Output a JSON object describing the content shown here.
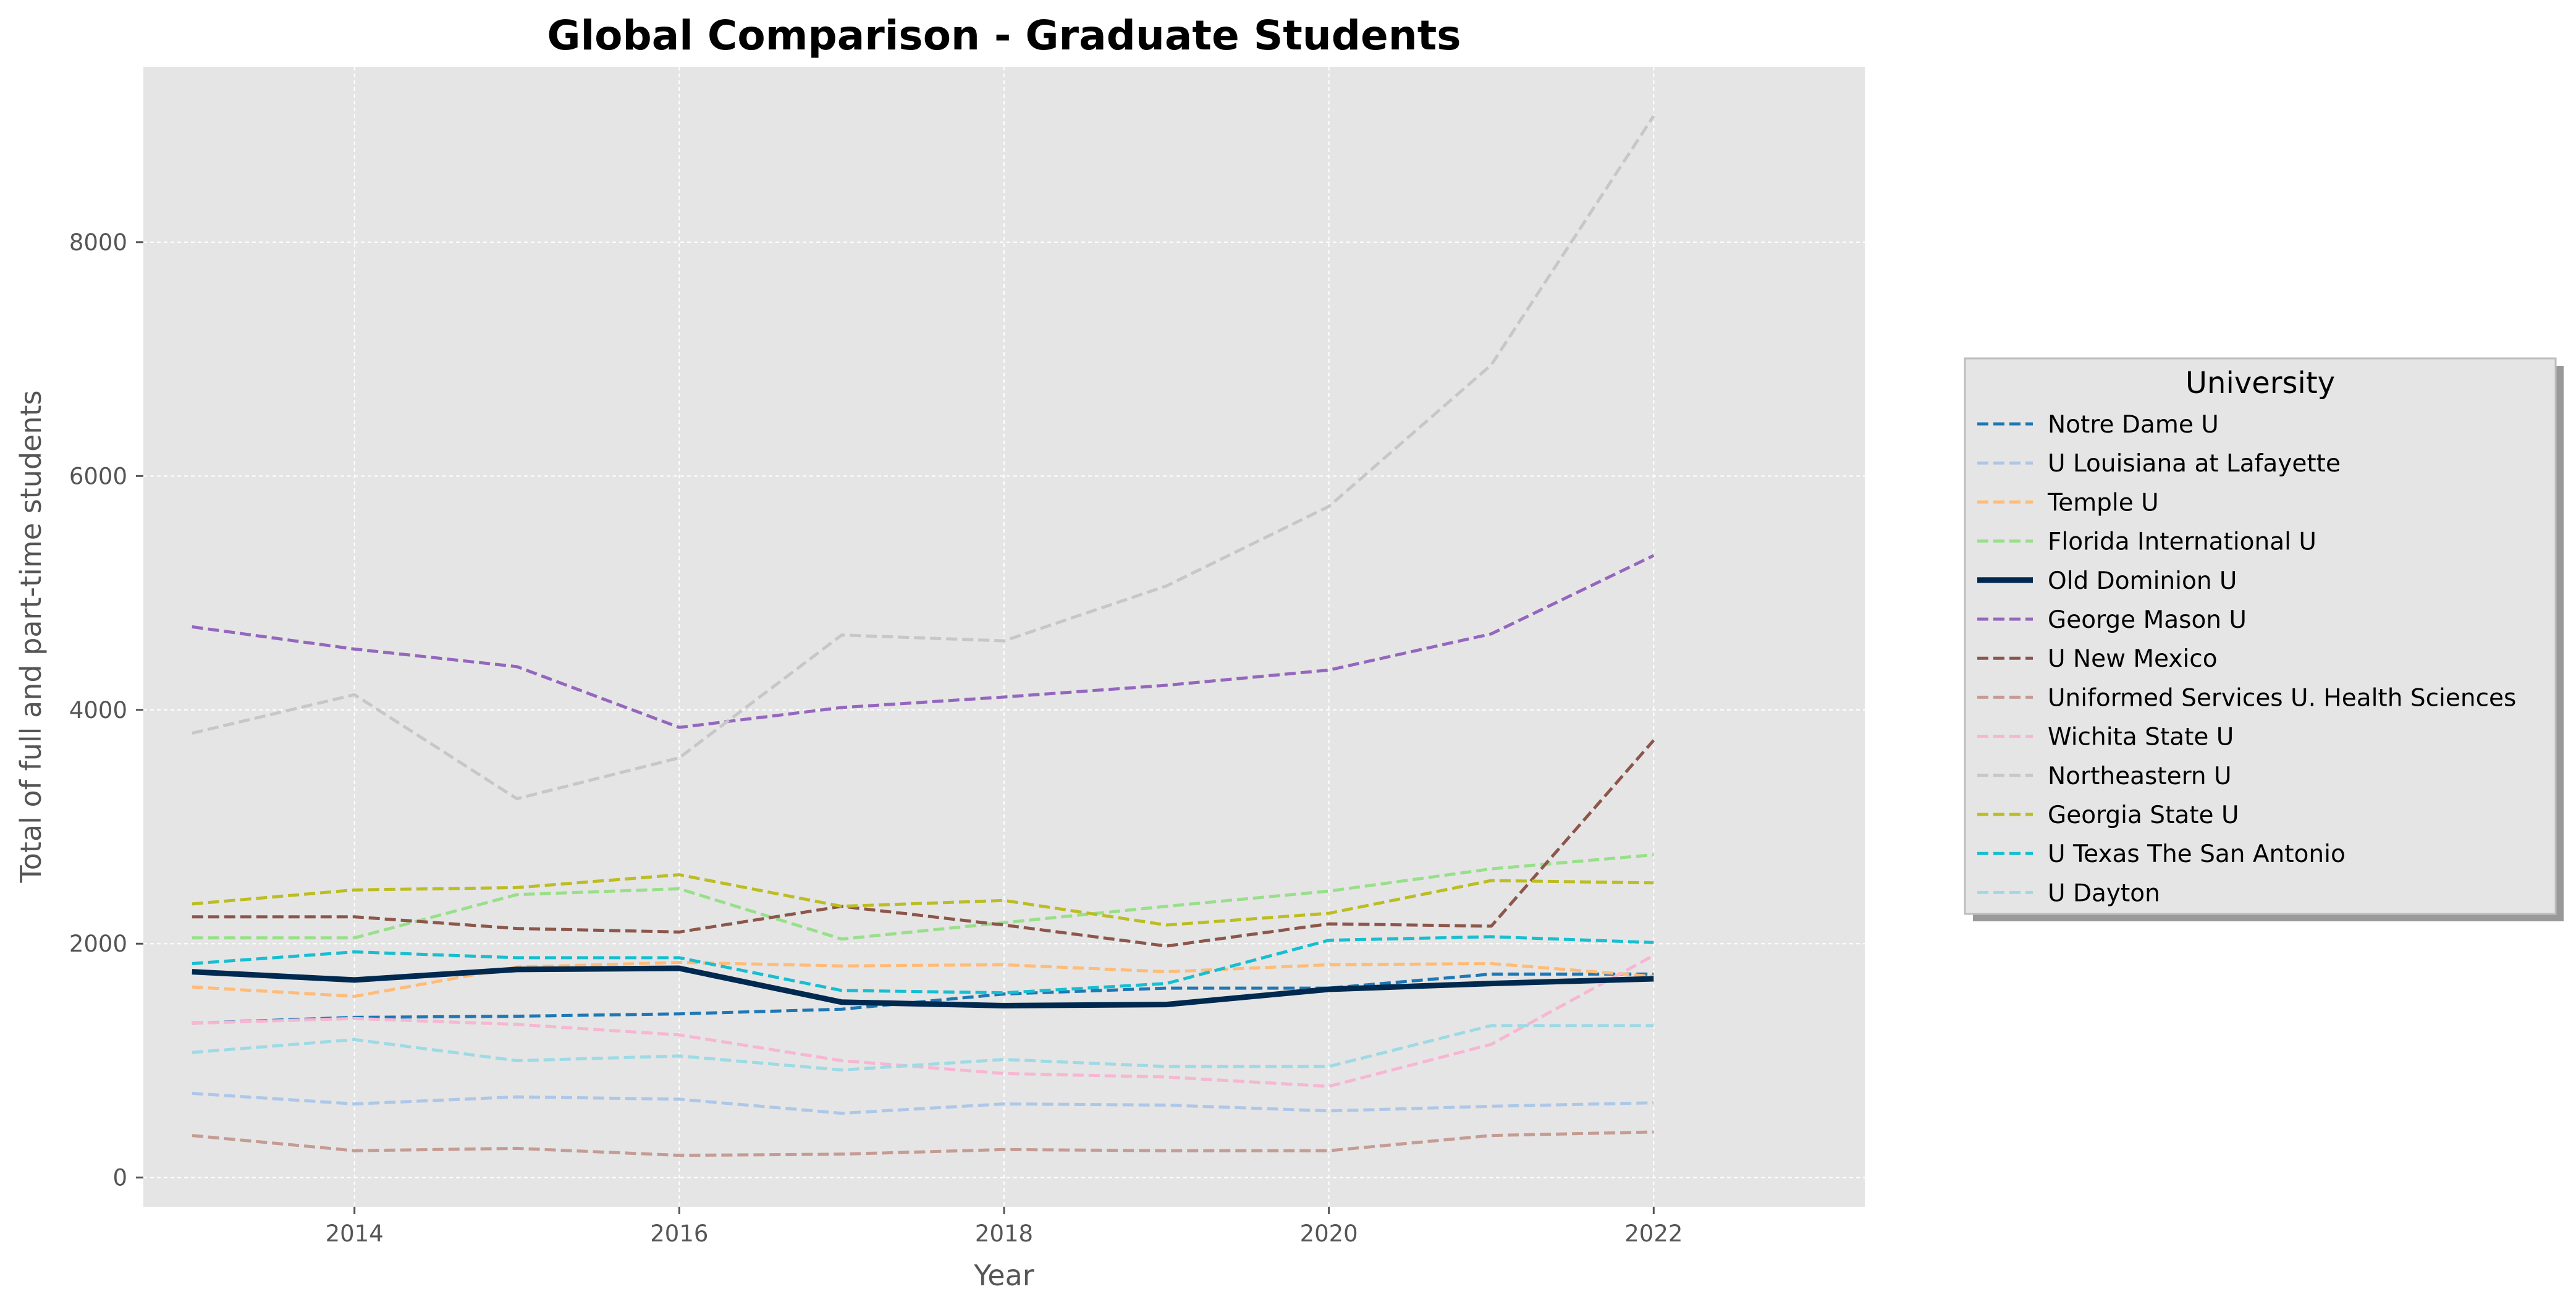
{
  "chart_data": {
    "type": "line",
    "title": "Global Comparison - Graduate Students",
    "xlabel": "Year",
    "ylabel": "Total of full and part-time students",
    "xlim": [
      2012.7,
      2023.3
    ],
    "ylim": [
      -250,
      9500
    ],
    "xticks": [
      2014,
      2016,
      2018,
      2020,
      2022
    ],
    "yticks": [
      0,
      2000,
      4000,
      6000,
      8000
    ],
    "grid": true,
    "legend_title": "University",
    "legend_position": "center-right-outside",
    "x": [
      2013,
      2014,
      2015,
      2016,
      2017,
      2018,
      2019,
      2020,
      2021,
      2022
    ],
    "series": [
      {
        "name": "Notre Dame U",
        "color": "#1f77b4",
        "style": "dashed",
        "values": [
          1320,
          1370,
          1380,
          1400,
          1440,
          1570,
          1620,
          1620,
          1740,
          1740
        ]
      },
      {
        "name": "U Louisiana at Lafayette",
        "color": "#aec7e8",
        "style": "dashed",
        "values": [
          720,
          630,
          690,
          670,
          550,
          630,
          620,
          570,
          610,
          640
        ]
      },
      {
        "name": "Temple U",
        "color": "#ffbb78",
        "style": "dashed",
        "values": [
          1630,
          1550,
          1800,
          1840,
          1810,
          1820,
          1760,
          1820,
          1830,
          1720
        ]
      },
      {
        "name": "Florida International U",
        "color": "#98df8a",
        "style": "dashed",
        "values": [
          2050,
          2050,
          2420,
          2470,
          2040,
          2180,
          2320,
          2450,
          2640,
          2760
        ]
      },
      {
        "name": "Old Dominion U",
        "color": "#00294f",
        "style": "solid",
        "values": [
          1760,
          1690,
          1780,
          1790,
          1500,
          1470,
          1480,
          1610,
          1660,
          1700
        ]
      },
      {
        "name": "George Mason U",
        "color": "#9467bd",
        "style": "dashed",
        "values": [
          4710,
          4520,
          4370,
          3850,
          4020,
          4110,
          4210,
          4340,
          4650,
          5320
        ]
      },
      {
        "name": "U New Mexico",
        "color": "#8c564b",
        "style": "dashed",
        "values": [
          2230,
          2230,
          2130,
          2100,
          2320,
          2160,
          1980,
          2170,
          2150,
          3740
        ]
      },
      {
        "name": "Uniformed Services U. Health Sciences",
        "color": "#c49c94",
        "style": "dashed",
        "values": [
          360,
          230,
          250,
          190,
          200,
          240,
          230,
          230,
          360,
          390
        ]
      },
      {
        "name": "Wichita State U",
        "color": "#f7b6d2",
        "style": "dashed",
        "values": [
          1320,
          1360,
          1310,
          1220,
          1000,
          890,
          860,
          780,
          1140,
          1900
        ]
      },
      {
        "name": "Northeastern U",
        "color": "#c7c7c7",
        "style": "dashed",
        "values": [
          3800,
          4130,
          3240,
          3590,
          4640,
          4590,
          5060,
          5740,
          6950,
          9080
        ]
      },
      {
        "name": "Georgia State U",
        "color": "#bcbd22",
        "style": "dashed",
        "values": [
          2340,
          2460,
          2480,
          2590,
          2320,
          2370,
          2160,
          2260,
          2540,
          2520
        ]
      },
      {
        "name": "U Texas The San Antonio",
        "color": "#17becf",
        "style": "dashed",
        "values": [
          1830,
          1930,
          1880,
          1880,
          1600,
          1580,
          1660,
          2030,
          2060,
          2010
        ]
      },
      {
        "name": "U Dayton",
        "color": "#9edae5",
        "style": "dashed",
        "values": [
          1070,
          1180,
          1000,
          1040,
          920,
          1010,
          950,
          950,
          1300,
          1300
        ]
      }
    ]
  }
}
